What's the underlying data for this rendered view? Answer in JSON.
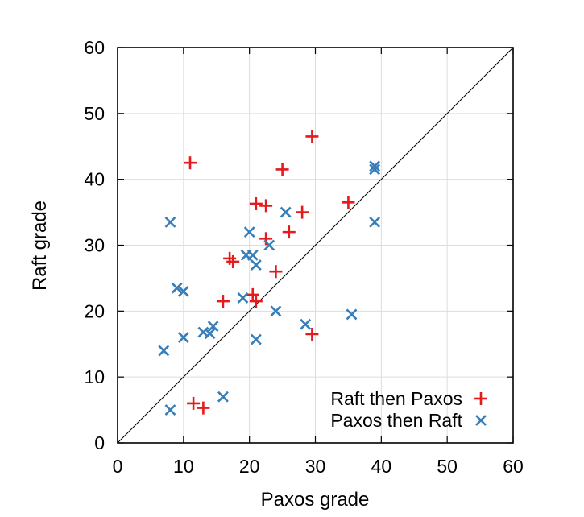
{
  "chart_data": {
    "type": "scatter",
    "title": "",
    "xlabel": "Paxos grade",
    "ylabel": "Raft grade",
    "xlim": [
      0,
      60
    ],
    "ylim": [
      0,
      60
    ],
    "xticks": [
      "0",
      "10",
      "20",
      "30",
      "40",
      "50",
      "60"
    ],
    "yticks": [
      "0",
      "10",
      "20",
      "30",
      "40",
      "50",
      "60"
    ],
    "grid": true,
    "diagonal": true,
    "legend_position": "bottom-right",
    "series": [
      {
        "name": "Raft then Paxos",
        "marker": "plus",
        "color": "#e41a1c",
        "x": [
          11,
          29.5,
          25,
          35,
          21,
          22.5,
          28,
          17,
          17.5,
          26,
          22.5,
          24,
          20.5,
          21,
          16,
          29.5,
          11.5,
          13
        ],
        "y": [
          42.5,
          46.5,
          41.5,
          36.5,
          36.3,
          36,
          35,
          28,
          27.5,
          32,
          31,
          26,
          22.5,
          21.5,
          21.5,
          16.5,
          6,
          5.3
        ]
      },
      {
        "name": "Paxos then Raft",
        "marker": "x",
        "color": "#377eb8",
        "x": [
          39,
          39,
          39,
          25.5,
          20,
          23,
          19.5,
          20.5,
          21,
          8,
          9,
          10,
          19,
          24,
          28.5,
          35.5,
          14.5,
          13,
          14,
          10,
          21,
          7,
          16,
          8
        ],
        "y": [
          42,
          41.5,
          33.5,
          35,
          32,
          30,
          28.5,
          28.5,
          27,
          33.5,
          23.5,
          23,
          22,
          20,
          18,
          19.5,
          17.7,
          16.8,
          16.6,
          16,
          15.7,
          14,
          7,
          5
        ]
      }
    ]
  }
}
